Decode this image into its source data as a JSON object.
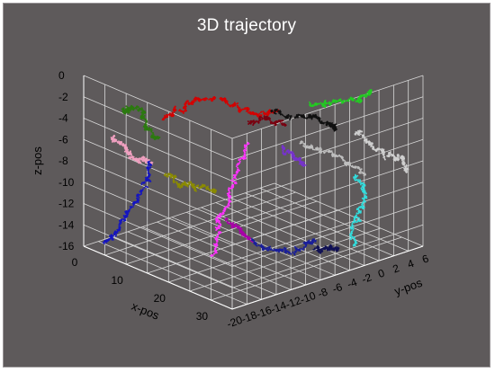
{
  "chart_data": {
    "type": "scatter",
    "title": "3D trajectory",
    "xlabel": "x-pos",
    "ylabel": "y-pos",
    "zlabel": "z-pos",
    "xlim": [
      0,
      35
    ],
    "ylim": [
      -20,
      6
    ],
    "zlim": [
      -16,
      0
    ],
    "x_ticks": [
      0,
      10,
      20,
      30
    ],
    "y_ticks": [
      -20,
      -18,
      -16,
      -14,
      -12,
      -10,
      -8,
      -6,
      -4,
      -2,
      0,
      2,
      4,
      6
    ],
    "z_ticks": [
      0,
      -2,
      -4,
      -6,
      -8,
      -10,
      -12,
      -14,
      -16
    ],
    "grid": true,
    "series": [
      {
        "color": "#d40000",
        "path": [
          [
            12,
            -16,
            -3
          ],
          [
            14,
            -15,
            -2
          ],
          [
            16,
            -14,
            -1
          ],
          [
            18,
            -12,
            -1
          ],
          [
            19,
            -10,
            -2
          ],
          [
            20,
            -8,
            -3
          ],
          [
            21,
            -6,
            -3
          ]
        ]
      },
      {
        "color": "#2c7a10",
        "path": [
          [
            3,
            -16,
            -4
          ],
          [
            5,
            -17,
            -3
          ],
          [
            7,
            -16,
            -3
          ],
          [
            9,
            -17,
            -4
          ],
          [
            11,
            -16,
            -5
          ]
        ]
      },
      {
        "color": "#111111",
        "path": [
          [
            20,
            -6,
            -3
          ],
          [
            22,
            -4,
            -4
          ],
          [
            23,
            -2,
            -4
          ],
          [
            24,
            0,
            -5
          ],
          [
            23,
            1,
            -6
          ]
        ]
      },
      {
        "color": "#7a0010",
        "path": [
          [
            18,
            -8,
            -4
          ],
          [
            19,
            -6,
            -4
          ],
          [
            20,
            -4,
            -5
          ]
        ]
      },
      {
        "color": "#22cc22",
        "path": [
          [
            22,
            -2,
            -3
          ],
          [
            24,
            0,
            -3
          ],
          [
            26,
            2,
            -3
          ],
          [
            28,
            3,
            -2
          ]
        ]
      },
      {
        "color": "#f0a0c0",
        "path": [
          [
            2,
            -17,
            -6
          ],
          [
            3,
            -16,
            -7
          ],
          [
            5,
            -16,
            -8
          ],
          [
            7,
            -15,
            -8
          ]
        ]
      },
      {
        "color": "#1515c0",
        "path": [
          [
            7,
            -15,
            -8
          ],
          [
            8,
            -16,
            -10
          ],
          [
            7,
            -18,
            -12
          ],
          [
            6,
            -19,
            -14
          ],
          [
            5,
            -20,
            -15
          ]
        ]
      },
      {
        "color": "#8b8b00",
        "path": [
          [
            9,
            -14,
            -9
          ],
          [
            11,
            -13,
            -10
          ],
          [
            13,
            -12,
            -10
          ],
          [
            14,
            -10,
            -11
          ]
        ]
      },
      {
        "color": "#ff33ff",
        "path": [
          [
            18,
            -8,
            -6
          ],
          [
            17,
            -9,
            -9
          ],
          [
            16,
            -10,
            -12
          ],
          [
            16,
            -11,
            -14
          ],
          [
            17,
            -12,
            -16
          ]
        ]
      },
      {
        "color": "#bfbfbf",
        "path": [
          [
            20,
            -2,
            -7
          ],
          [
            22,
            0,
            -8
          ],
          [
            24,
            2,
            -9
          ],
          [
            26,
            3,
            -10
          ]
        ]
      },
      {
        "color": "#cfcfcf",
        "path": [
          [
            26,
            2,
            -6
          ],
          [
            28,
            3,
            -7
          ],
          [
            30,
            4,
            -8
          ],
          [
            32,
            5,
            -8
          ],
          [
            33,
            5,
            -9
          ]
        ]
      },
      {
        "color": "#aa00aa",
        "path": [
          [
            16,
            -10,
            -13
          ],
          [
            18,
            -9,
            -14
          ],
          [
            19,
            -8,
            -15
          ]
        ]
      },
      {
        "color": "#1a1f9a",
        "path": [
          [
            19,
            -8,
            -15
          ],
          [
            21,
            -6,
            -16
          ],
          [
            23,
            -4,
            -16
          ],
          [
            25,
            -3,
            -15
          ]
        ]
      },
      {
        "color": "#33dddd",
        "path": [
          [
            26,
            2,
            -10
          ],
          [
            27,
            3,
            -12
          ],
          [
            26,
            2,
            -14
          ],
          [
            27,
            1,
            -16
          ]
        ]
      },
      {
        "color": "#111155",
        "path": [
          [
            25,
            -3,
            -16
          ],
          [
            26,
            -2,
            -16
          ],
          [
            27,
            -1,
            -16
          ]
        ]
      },
      {
        "color": "#7733cc",
        "path": [
          [
            19,
            -4,
            -7
          ],
          [
            20,
            -3,
            -8
          ],
          [
            21,
            -2,
            -9
          ]
        ]
      }
    ]
  }
}
